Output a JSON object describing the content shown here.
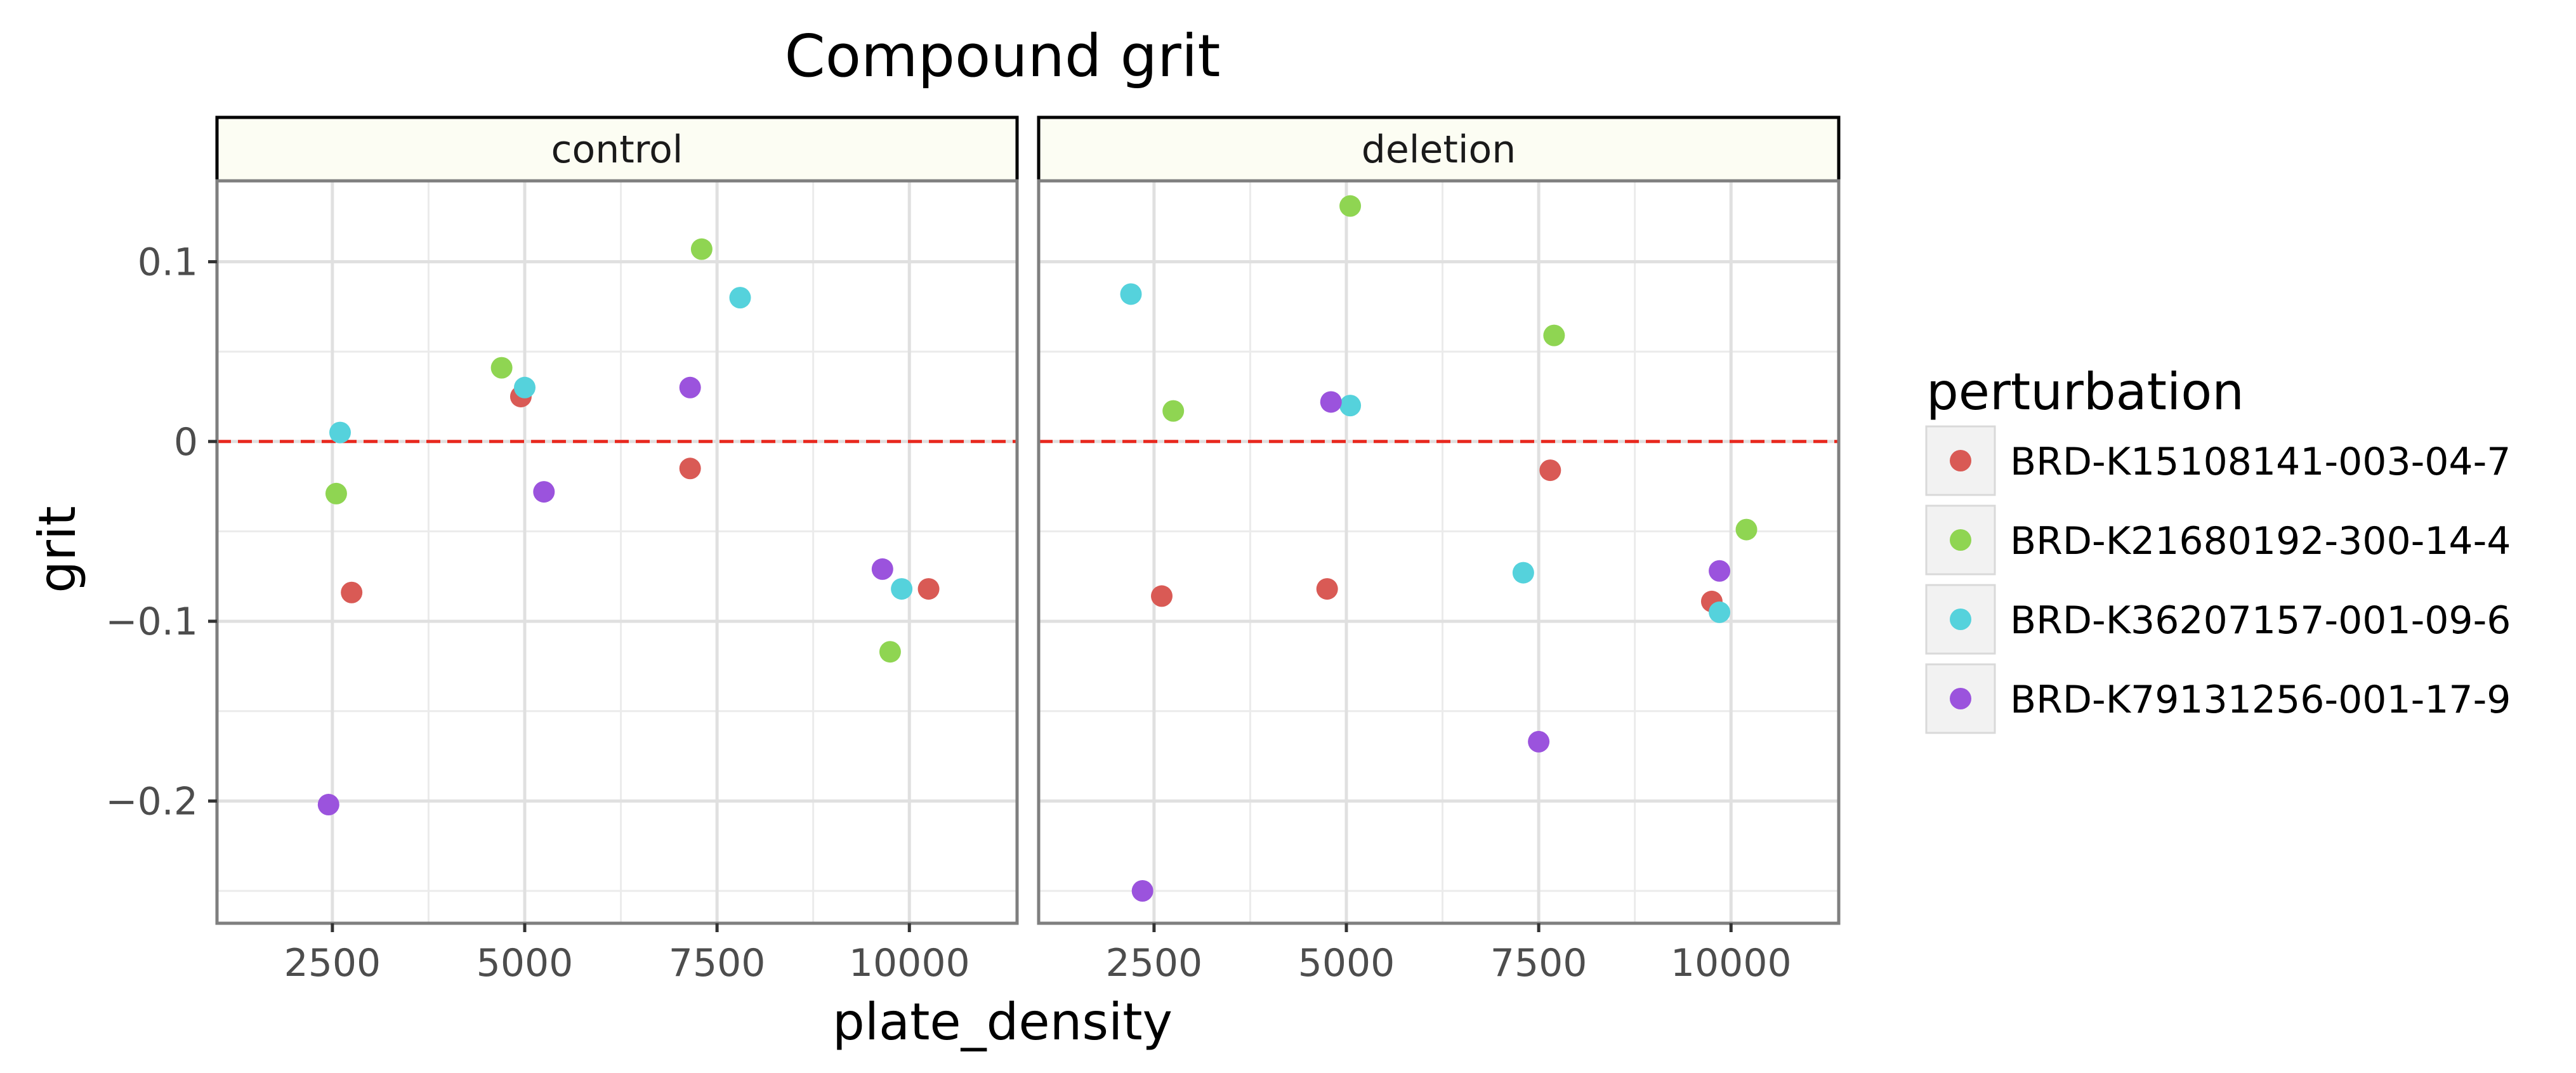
{
  "chart_data": {
    "type": "scatter",
    "title": "Compound grit",
    "xlabel": "plate_density",
    "ylabel": "grit",
    "xlim": [
      1000,
      11400
    ],
    "ylim": [
      -0.268,
      0.145
    ],
    "x_ticks": [
      2500,
      5000,
      7500,
      10000
    ],
    "x_tick_labels": [
      "2500",
      "5000",
      "7500",
      "10000"
    ],
    "y_ticks": [
      0.1,
      0,
      -0.1,
      -0.2
    ],
    "y_tick_labels": [
      "0.1",
      "0",
      "−0.1",
      "−0.2"
    ],
    "y_minor_ticks": [
      0.05,
      -0.05,
      -0.15,
      -0.25
    ],
    "grid": true,
    "reference_line": {
      "y": 0,
      "color": "#e8281e",
      "style": "dashed"
    },
    "legend": {
      "title": "perturbation",
      "position": "right"
    },
    "series": [
      {
        "name": "BRD-K15108141-003-04-7",
        "color": "#d95a55"
      },
      {
        "name": "BRD-K21680192-300-14-4",
        "color": "#8fd552"
      },
      {
        "name": "BRD-K36207157-001-09-6",
        "color": "#55d2dc"
      },
      {
        "name": "BRD-K79131256-001-17-9",
        "color": "#9b53dd"
      }
    ],
    "facets": [
      {
        "label": "control",
        "points": [
          {
            "series": 0,
            "x": 2750,
            "y": -0.084
          },
          {
            "series": 0,
            "x": 4950,
            "y": 0.025
          },
          {
            "series": 0,
            "x": 7150,
            "y": -0.015
          },
          {
            "series": 0,
            "x": 10250,
            "y": -0.082
          },
          {
            "series": 1,
            "x": 2550,
            "y": -0.029
          },
          {
            "series": 1,
            "x": 4700,
            "y": 0.041
          },
          {
            "series": 1,
            "x": 7300,
            "y": 0.107
          },
          {
            "series": 1,
            "x": 9750,
            "y": -0.117
          },
          {
            "series": 2,
            "x": 2600,
            "y": 0.005
          },
          {
            "series": 2,
            "x": 5000,
            "y": 0.03
          },
          {
            "series": 2,
            "x": 7800,
            "y": 0.08
          },
          {
            "series": 2,
            "x": 9900,
            "y": -0.082
          },
          {
            "series": 3,
            "x": 2450,
            "y": -0.202
          },
          {
            "series": 3,
            "x": 5250,
            "y": -0.028
          },
          {
            "series": 3,
            "x": 7150,
            "y": 0.03
          },
          {
            "series": 3,
            "x": 9650,
            "y": -0.071
          }
        ]
      },
      {
        "label": "deletion",
        "points": [
          {
            "series": 0,
            "x": 2600,
            "y": -0.086
          },
          {
            "series": 0,
            "x": 4750,
            "y": -0.082
          },
          {
            "series": 0,
            "x": 7650,
            "y": -0.016
          },
          {
            "series": 0,
            "x": 9750,
            "y": -0.089
          },
          {
            "series": 1,
            "x": 2750,
            "y": 0.017
          },
          {
            "series": 1,
            "x": 5050,
            "y": 0.131
          },
          {
            "series": 1,
            "x": 7700,
            "y": 0.059
          },
          {
            "series": 1,
            "x": 10200,
            "y": -0.049
          },
          {
            "series": 2,
            "x": 2200,
            "y": 0.082
          },
          {
            "series": 2,
            "x": 5050,
            "y": 0.02
          },
          {
            "series": 2,
            "x": 7300,
            "y": -0.073
          },
          {
            "series": 2,
            "x": 9850,
            "y": -0.095
          },
          {
            "series": 3,
            "x": 2350,
            "y": -0.25
          },
          {
            "series": 3,
            "x": 4800,
            "y": 0.022
          },
          {
            "series": 3,
            "x": 7500,
            "y": -0.167
          },
          {
            "series": 3,
            "x": 9850,
            "y": -0.072
          }
        ]
      }
    ]
  }
}
